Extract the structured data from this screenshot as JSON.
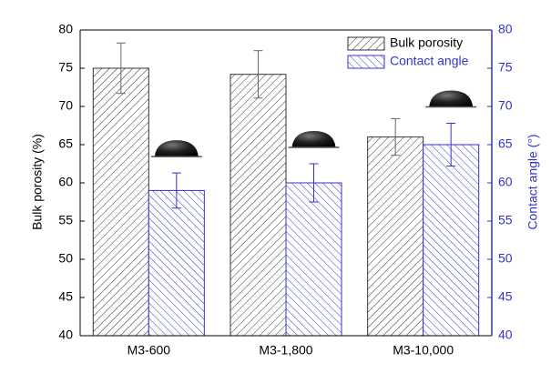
{
  "chart_data": {
    "type": "bar",
    "categories": [
      "M3-600",
      "M3-1,800",
      "M3-10,000"
    ],
    "series": [
      {
        "name": "Bulk porosity",
        "color": "#333333",
        "values": [
          75,
          74.2,
          66
        ],
        "errors": [
          3.3,
          3.1,
          2.4
        ]
      },
      {
        "name": "Contact angle",
        "color": "#3333cc",
        "axis": "y2",
        "values": [
          59,
          60,
          65
        ],
        "errors": [
          2.3,
          2.5,
          2.8
        ]
      }
    ],
    "ylabel": "Bulk porosity (%)",
    "y2label": "Contact angle (°)",
    "ylim": [
      40,
      80
    ],
    "yticks": [
      40,
      45,
      50,
      55,
      60,
      65,
      70,
      75,
      80
    ],
    "y2lim": [
      40,
      80
    ],
    "y2ticks": [
      40,
      45,
      50,
      55,
      60,
      65,
      70,
      75,
      80
    ],
    "legend": "upper right"
  }
}
